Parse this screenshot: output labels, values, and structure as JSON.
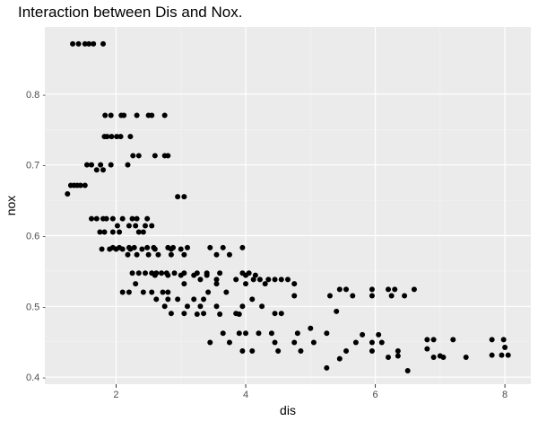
{
  "chart_data": {
    "type": "scatter",
    "title": "Interaction between Dis and Nox.",
    "xlabel": "dis",
    "ylabel": "nox",
    "xlim": [
      0.9,
      8.4
    ],
    "ylim": [
      0.39,
      0.895
    ],
    "x_ticks": [
      2,
      4,
      6,
      8
    ],
    "y_ticks": [
      0.4,
      0.5,
      0.6,
      0.7,
      0.8
    ],
    "x_tick_labels": [
      "2",
      "4",
      "6",
      "8"
    ],
    "y_tick_labels": [
      "0.4 -",
      "0.5 -",
      "0.6 -",
      "0.7 -",
      "0.8 -"
    ],
    "grid": true,
    "colors": {
      "panel": "#ebebeb",
      "grid_major": "#ffffff",
      "point": "#000000"
    },
    "points": [
      [
        1.33,
        0.871
      ],
      [
        1.42,
        0.871
      ],
      [
        1.52,
        0.871
      ],
      [
        1.58,
        0.871
      ],
      [
        1.65,
        0.871
      ],
      [
        1.8,
        0.871
      ],
      [
        1.83,
        0.77
      ],
      [
        1.92,
        0.77
      ],
      [
        2.08,
        0.77
      ],
      [
        2.12,
        0.77
      ],
      [
        2.32,
        0.77
      ],
      [
        2.5,
        0.77
      ],
      [
        2.55,
        0.77
      ],
      [
        2.75,
        0.77
      ],
      [
        1.82,
        0.74
      ],
      [
        1.86,
        0.74
      ],
      [
        1.93,
        0.74
      ],
      [
        2.01,
        0.74
      ],
      [
        2.07,
        0.74
      ],
      [
        2.22,
        0.74
      ],
      [
        2.26,
        0.713
      ],
      [
        2.35,
        0.713
      ],
      [
        2.6,
        0.713
      ],
      [
        2.75,
        0.713
      ],
      [
        2.8,
        0.713
      ],
      [
        1.55,
        0.7
      ],
      [
        1.62,
        0.7
      ],
      [
        1.7,
        0.693
      ],
      [
        1.76,
        0.7
      ],
      [
        1.8,
        0.693
      ],
      [
        1.92,
        0.7
      ],
      [
        2.18,
        0.7
      ],
      [
        1.3,
        0.671
      ],
      [
        1.35,
        0.671
      ],
      [
        1.4,
        0.671
      ],
      [
        1.45,
        0.671
      ],
      [
        1.52,
        0.671
      ],
      [
        1.25,
        0.659
      ],
      [
        2.95,
        0.655
      ],
      [
        3.05,
        0.655
      ],
      [
        1.62,
        0.624
      ],
      [
        1.7,
        0.624
      ],
      [
        1.8,
        0.624
      ],
      [
        1.85,
        0.624
      ],
      [
        1.95,
        0.624
      ],
      [
        2.1,
        0.624
      ],
      [
        2.25,
        0.624
      ],
      [
        2.32,
        0.624
      ],
      [
        2.48,
        0.624
      ],
      [
        2.02,
        0.614
      ],
      [
        2.2,
        0.614
      ],
      [
        2.3,
        0.614
      ],
      [
        2.45,
        0.614
      ],
      [
        2.55,
        0.614
      ],
      [
        1.75,
        0.605
      ],
      [
        1.82,
        0.605
      ],
      [
        1.95,
        0.605
      ],
      [
        2.05,
        0.605
      ],
      [
        2.35,
        0.605
      ],
      [
        2.42,
        0.605
      ],
      [
        1.95,
        0.583
      ],
      [
        2.05,
        0.583
      ],
      [
        2.2,
        0.583
      ],
      [
        2.28,
        0.583
      ],
      [
        2.48,
        0.583
      ],
      [
        2.58,
        0.583
      ],
      [
        2.8,
        0.583
      ],
      [
        2.88,
        0.583
      ],
      [
        3.1,
        0.583
      ],
      [
        3.45,
        0.583
      ],
      [
        3.65,
        0.583
      ],
      [
        3.95,
        0.583
      ],
      [
        1.78,
        0.581
      ],
      [
        1.9,
        0.581
      ],
      [
        2.0,
        0.581
      ],
      [
        2.1,
        0.581
      ],
      [
        2.22,
        0.581
      ],
      [
        2.4,
        0.581
      ],
      [
        2.6,
        0.581
      ],
      [
        2.85,
        0.581
      ],
      [
        3.0,
        0.581
      ],
      [
        2.18,
        0.573
      ],
      [
        2.32,
        0.573
      ],
      [
        2.5,
        0.573
      ],
      [
        2.65,
        0.573
      ],
      [
        2.85,
        0.573
      ],
      [
        3.05,
        0.573
      ],
      [
        3.55,
        0.573
      ],
      [
        3.75,
        0.573
      ],
      [
        2.25,
        0.547
      ],
      [
        2.35,
        0.547
      ],
      [
        2.45,
        0.547
      ],
      [
        2.55,
        0.547
      ],
      [
        2.62,
        0.547
      ],
      [
        2.7,
        0.547
      ],
      [
        2.78,
        0.547
      ],
      [
        2.9,
        0.547
      ],
      [
        3.05,
        0.547
      ],
      [
        3.25,
        0.547
      ],
      [
        3.4,
        0.547
      ],
      [
        3.6,
        0.547
      ],
      [
        3.95,
        0.547
      ],
      [
        4.05,
        0.547
      ],
      [
        2.6,
        0.544
      ],
      [
        2.8,
        0.544
      ],
      [
        3.0,
        0.544
      ],
      [
        3.2,
        0.544
      ],
      [
        3.4,
        0.544
      ],
      [
        4.0,
        0.544
      ],
      [
        4.15,
        0.544
      ],
      [
        3.3,
        0.538
      ],
      [
        3.55,
        0.538
      ],
      [
        3.85,
        0.538
      ],
      [
        4.12,
        0.538
      ],
      [
        4.22,
        0.538
      ],
      [
        4.35,
        0.538
      ],
      [
        4.45,
        0.538
      ],
      [
        4.55,
        0.538
      ],
      [
        4.65,
        0.538
      ],
      [
        2.3,
        0.532
      ],
      [
        3.05,
        0.532
      ],
      [
        3.55,
        0.532
      ],
      [
        4.0,
        0.532
      ],
      [
        4.3,
        0.532
      ],
      [
        4.75,
        0.532
      ],
      [
        2.1,
        0.52
      ],
      [
        2.2,
        0.52
      ],
      [
        2.42,
        0.52
      ],
      [
        2.55,
        0.52
      ],
      [
        2.72,
        0.52
      ],
      [
        2.8,
        0.52
      ],
      [
        3.42,
        0.52
      ],
      [
        3.7,
        0.52
      ],
      [
        2.62,
        0.51
      ],
      [
        2.8,
        0.51
      ],
      [
        2.95,
        0.51
      ],
      [
        3.2,
        0.51
      ],
      [
        3.35,
        0.51
      ],
      [
        4.1,
        0.51
      ],
      [
        4.75,
        0.515
      ],
      [
        5.3,
        0.515
      ],
      [
        5.65,
        0.515
      ],
      [
        5.95,
        0.515
      ],
      [
        6.25,
        0.515
      ],
      [
        6.45,
        0.515
      ],
      [
        5.45,
        0.524
      ],
      [
        5.55,
        0.524
      ],
      [
        5.95,
        0.524
      ],
      [
        6.2,
        0.524
      ],
      [
        6.3,
        0.524
      ],
      [
        6.6,
        0.524
      ],
      [
        2.75,
        0.5
      ],
      [
        3.1,
        0.5
      ],
      [
        3.3,
        0.5
      ],
      [
        3.55,
        0.5
      ],
      [
        3.95,
        0.5
      ],
      [
        4.25,
        0.5
      ],
      [
        2.85,
        0.49
      ],
      [
        3.05,
        0.49
      ],
      [
        3.35,
        0.49
      ],
      [
        3.85,
        0.49
      ],
      [
        4.45,
        0.49
      ],
      [
        4.55,
        0.49
      ],
      [
        3.25,
        0.489
      ],
      [
        3.6,
        0.489
      ],
      [
        3.9,
        0.489
      ],
      [
        5.4,
        0.493
      ],
      [
        4.0,
        0.462
      ],
      [
        4.2,
        0.462
      ],
      [
        3.65,
        0.462
      ],
      [
        3.9,
        0.462
      ],
      [
        4.4,
        0.462
      ],
      [
        4.8,
        0.462
      ],
      [
        5.25,
        0.462
      ],
      [
        3.45,
        0.449
      ],
      [
        3.75,
        0.449
      ],
      [
        4.45,
        0.449
      ],
      [
        4.75,
        0.449
      ],
      [
        5.05,
        0.449
      ],
      [
        5.7,
        0.449
      ],
      [
        5.95,
        0.449
      ],
      [
        6.1,
        0.449
      ],
      [
        3.95,
        0.437
      ],
      [
        4.1,
        0.437
      ],
      [
        4.5,
        0.437
      ],
      [
        4.85,
        0.437
      ],
      [
        5.55,
        0.437
      ],
      [
        5.95,
        0.437
      ],
      [
        6.35,
        0.437
      ],
      [
        5.0,
        0.469
      ],
      [
        5.8,
        0.46
      ],
      [
        6.05,
        0.46
      ],
      [
        6.35,
        0.43
      ],
      [
        6.2,
        0.428
      ],
      [
        6.9,
        0.428
      ],
      [
        7.05,
        0.428
      ],
      [
        7.4,
        0.428
      ],
      [
        5.25,
        0.413
      ],
      [
        5.45,
        0.426
      ],
      [
        6.5,
        0.409
      ],
      [
        6.8,
        0.453
      ],
      [
        6.9,
        0.453
      ],
      [
        7.2,
        0.453
      ],
      [
        7.8,
        0.453
      ],
      [
        7.98,
        0.453
      ],
      [
        6.8,
        0.44
      ],
      [
        7.0,
        0.43
      ],
      [
        7.8,
        0.431
      ],
      [
        7.95,
        0.431
      ],
      [
        8.05,
        0.431
      ],
      [
        8.0,
        0.442
      ]
    ]
  }
}
